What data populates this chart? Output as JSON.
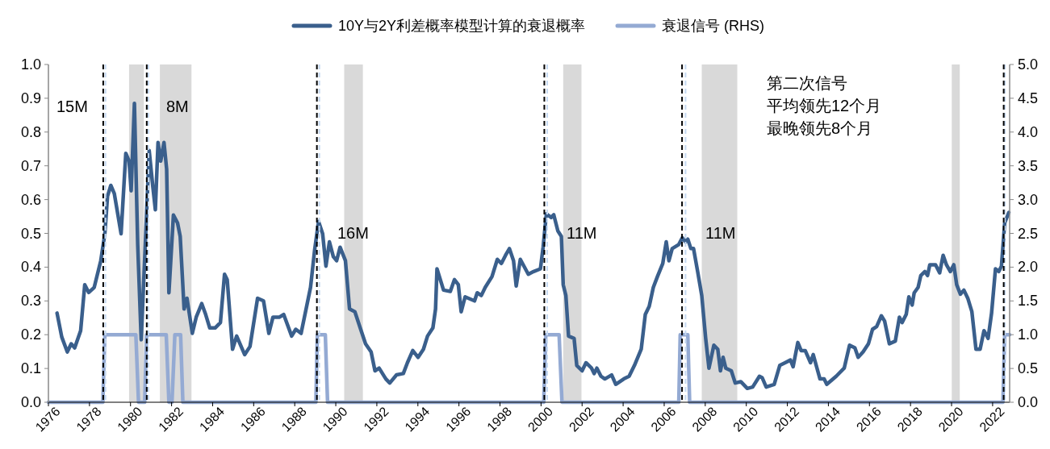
{
  "chart_data": {
    "type": "line",
    "legend": "top",
    "xlim": [
      1976,
      2022.83
    ],
    "xticks": [
      1976,
      1978,
      1980,
      1982,
      1984,
      1986,
      1988,
      1990,
      1992,
      1994,
      1996,
      1998,
      2000,
      2002,
      2004,
      2006,
      2008,
      2010,
      2012,
      2014,
      2016,
      2018,
      2020,
      2022
    ],
    "ylim": [
      0,
      1
    ],
    "yticks": [
      {
        "value": 0,
        "label": "0.0"
      },
      {
        "value": 0.1,
        "label": "0.1"
      },
      {
        "value": 0.2,
        "label": "0.2"
      },
      {
        "value": 0.3,
        "label": "0.3"
      },
      {
        "value": 0.4,
        "label": "0.4"
      },
      {
        "value": 0.5,
        "label": "0.5"
      },
      {
        "value": 0.6,
        "label": "0.6"
      },
      {
        "value": 0.7,
        "label": "0.7"
      },
      {
        "value": 0.8,
        "label": "0.8"
      },
      {
        "value": 0.9,
        "label": "0.9"
      },
      {
        "value": 1,
        "label": "1.0"
      }
    ],
    "y2lim": [
      0,
      5
    ],
    "y2ticks": [
      {
        "value": 0,
        "label": "0.0"
      },
      {
        "value": 0.5,
        "label": "0.5"
      },
      {
        "value": 1,
        "label": "1.0"
      },
      {
        "value": 1.5,
        "label": "1.5"
      },
      {
        "value": 2,
        "label": "2.0"
      },
      {
        "value": 2.5,
        "label": "2.5"
      },
      {
        "value": 3,
        "label": "3.0"
      },
      {
        "value": 3.5,
        "label": "3.5"
      },
      {
        "value": 4,
        "label": "4.0"
      },
      {
        "value": 4.5,
        "label": "4.5"
      },
      {
        "value": 5,
        "label": "5.0"
      }
    ],
    "series": [
      {
        "name": "10Y与2Y利差概率模型计算的衰退概率",
        "color": "#3a5f8c",
        "type": "line",
        "axis": "y",
        "x": [
          1976.42,
          1976.65,
          1976.92,
          1977.11,
          1977.28,
          1977.57,
          1977.77,
          1977.96,
          1978.23,
          1978.55,
          1978.75,
          1978.88,
          1979.04,
          1979.21,
          1979.54,
          1979.77,
          1979.93,
          1980.03,
          1980.19,
          1980.35,
          1980.52,
          1980.72,
          1980.91,
          1981.08,
          1981.21,
          1981.34,
          1981.47,
          1981.63,
          1981.76,
          1981.87,
          1982.09,
          1982.29,
          1982.42,
          1982.61,
          1982.75,
          1983.01,
          1983.2,
          1983.47,
          1983.66,
          1983.86,
          1984.12,
          1984.38,
          1984.58,
          1984.71,
          1984.97,
          1985.17,
          1985.56,
          1985.82,
          1986.19,
          1986.48,
          1986.74,
          1986.94,
          1987.26,
          1987.46,
          1987.85,
          1988.05,
          1988.31,
          1988.77,
          1988.97,
          1989.16,
          1989.36,
          1989.52,
          1989.69,
          1989.88,
          1990.04,
          1990.21,
          1990.47,
          1990.67,
          1990.93,
          1991.19,
          1991.45,
          1991.72,
          1991.91,
          1992.11,
          1992.44,
          1992.63,
          1992.96,
          1993.29,
          1993.49,
          1993.75,
          1994.01,
          1994.27,
          1994.47,
          1994.73,
          1994.86,
          1994.93,
          1995.25,
          1995.58,
          1995.78,
          1995.97,
          1996.11,
          1996.3,
          1996.76,
          1996.89,
          1997.09,
          1997.28,
          1997.61,
          1997.87,
          1998.07,
          1998.27,
          1998.46,
          1998.66,
          1998.79,
          1998.99,
          1999.38,
          1999.64,
          1999.97,
          2000.1,
          2000.26,
          2000.49,
          2000.62,
          2000.82,
          2000.99,
          2001.08,
          2001.21,
          2001.34,
          2001.61,
          2001.74,
          2002.0,
          2002.19,
          2002.46,
          2002.59,
          2002.72,
          2002.92,
          2003.11,
          2003.44,
          2003.64,
          2004.03,
          2004.29,
          2004.55,
          2004.88,
          2005.08,
          2005.27,
          2005.47,
          2005.67,
          2005.93,
          2006.1,
          2006.23,
          2006.39,
          2006.71,
          2006.88,
          2007.04,
          2007.15,
          2007.3,
          2007.43,
          2007.63,
          2007.83,
          2008.02,
          2008.18,
          2008.42,
          2008.61,
          2008.74,
          2008.87,
          2009.0,
          2009.27,
          2009.46,
          2009.73,
          2010.05,
          2010.31,
          2010.64,
          2010.77,
          2010.97,
          2011.36,
          2011.63,
          2011.89,
          2012.15,
          2012.28,
          2012.51,
          2012.67,
          2012.87,
          2013.13,
          2013.26,
          2013.59,
          2013.79,
          2013.92,
          2014.38,
          2014.77,
          2015.03,
          2015.29,
          2015.45,
          2015.69,
          2015.95,
          2016.15,
          2016.35,
          2016.58,
          2016.74,
          2016.97,
          2017.26,
          2017.46,
          2017.59,
          2017.79,
          2017.92,
          2018.08,
          2018.18,
          2018.37,
          2018.5,
          2018.7,
          2018.83,
          2018.94,
          2019.22,
          2019.42,
          2019.59,
          2019.75,
          2019.94,
          2020.11,
          2020.25,
          2020.43,
          2020.6,
          2020.79,
          2020.99,
          2021.19,
          2021.39,
          2021.58,
          2021.78,
          2021.95,
          2022.14,
          2022.3,
          2022.43,
          2022.59,
          2022.79
        ],
        "values": [
          0.264,
          0.193,
          0.149,
          0.173,
          0.161,
          0.212,
          0.348,
          0.325,
          0.34,
          0.419,
          0.499,
          0.61,
          0.642,
          0.618,
          0.499,
          0.737,
          0.714,
          0.626,
          0.885,
          0.467,
          0.185,
          0.467,
          0.745,
          0.642,
          0.57,
          0.769,
          0.714,
          0.769,
          0.69,
          0.324,
          0.554,
          0.531,
          0.491,
          0.276,
          0.308,
          0.204,
          0.252,
          0.292,
          0.26,
          0.22,
          0.22,
          0.236,
          0.379,
          0.363,
          0.157,
          0.196,
          0.141,
          0.165,
          0.308,
          0.3,
          0.204,
          0.252,
          0.252,
          0.26,
          0.196,
          0.216,
          0.204,
          0.34,
          0.451,
          0.535,
          0.499,
          0.403,
          0.475,
          0.431,
          0.419,
          0.459,
          0.419,
          0.276,
          0.268,
          0.22,
          0.173,
          0.149,
          0.093,
          0.101,
          0.069,
          0.057,
          0.081,
          0.085,
          0.117,
          0.153,
          0.133,
          0.157,
          0.196,
          0.22,
          0.276,
          0.395,
          0.332,
          0.328,
          0.363,
          0.348,
          0.268,
          0.312,
          0.3,
          0.324,
          0.316,
          0.34,
          0.372,
          0.423,
          0.411,
          0.435,
          0.455,
          0.419,
          0.344,
          0.423,
          0.379,
          0.387,
          0.395,
          0.459,
          0.558,
          0.547,
          0.555,
          0.507,
          0.491,
          0.348,
          0.316,
          0.196,
          0.189,
          0.109,
          0.093,
          0.117,
          0.101,
          0.085,
          0.101,
          0.077,
          0.069,
          0.081,
          0.053,
          0.069,
          0.077,
          0.109,
          0.157,
          0.26,
          0.284,
          0.34,
          0.372,
          0.411,
          0.475,
          0.419,
          0.455,
          0.467,
          0.487,
          0.475,
          0.483,
          0.455,
          0.455,
          0.387,
          0.316,
          0.189,
          0.101,
          0.169,
          0.157,
          0.093,
          0.133,
          0.101,
          0.093,
          0.057,
          0.061,
          0.041,
          0.045,
          0.077,
          0.073,
          0.045,
          0.053,
          0.109,
          0.117,
          0.125,
          0.105,
          0.177,
          0.153,
          0.153,
          0.117,
          0.141,
          0.069,
          0.069,
          0.053,
          0.077,
          0.101,
          0.169,
          0.161,
          0.133,
          0.149,
          0.173,
          0.216,
          0.224,
          0.256,
          0.24,
          0.173,
          0.181,
          0.252,
          0.236,
          0.26,
          0.312,
          0.288,
          0.324,
          0.34,
          0.375,
          0.387,
          0.375,
          0.407,
          0.407,
          0.383,
          0.435,
          0.407,
          0.387,
          0.407,
          0.348,
          0.32,
          0.332,
          0.308,
          0.268,
          0.157,
          0.157,
          0.212,
          0.189,
          0.264,
          0.395,
          0.387,
          0.403,
          0.531,
          0.562
        ]
      },
      {
        "name": "衰退信号 (RHS)",
        "color": "#94aad3",
        "type": "line",
        "axis": "y2",
        "x": [
          1976,
          1978.65,
          1978.75,
          1980.26,
          1980.39,
          1980.69,
          1980.78,
          1981.74,
          1981.87,
          1982.02,
          1982.16,
          1982.44,
          1982.55,
          1989.03,
          1989.1,
          1989.49,
          1989.6,
          2000.13,
          2000.23,
          2000.88,
          2001.02,
          2006.71,
          2006.78,
          2007.15,
          2007.24,
          2022.5,
          2022.59,
          2022.83
        ],
        "values": [
          0,
          0,
          1,
          1,
          0,
          0,
          1,
          1,
          0,
          0,
          1,
          1,
          0,
          0,
          1,
          1,
          0,
          0,
          1,
          1,
          0,
          0,
          1,
          1,
          0,
          0,
          1,
          1
        ]
      }
    ],
    "bands": [
      {
        "axis": "x",
        "from": 1979.93,
        "to": 1980.65,
        "color": "#d9d9d9"
      },
      {
        "axis": "x",
        "from": 1981.43,
        "to": 1982.97,
        "color": "#d9d9d9"
      },
      {
        "axis": "x",
        "from": 1990.41,
        "to": 1991.32,
        "color": "#d9d9d9"
      },
      {
        "axis": "x",
        "from": 2001.08,
        "to": 2001.97,
        "color": "#d9d9d9"
      },
      {
        "axis": "x",
        "from": 2007.83,
        "to": 2009.56,
        "color": "#d9d9d9"
      },
      {
        "axis": "x",
        "from": 2020.01,
        "to": 2020.4,
        "color": "#d9d9d9"
      }
    ],
    "ref_lines": [
      {
        "axis": "x",
        "value": 1978.78,
        "color": "#c5d9f1",
        "line_style": "dashed"
      },
      {
        "axis": "x",
        "value": 1980.87,
        "color": "#c5d9f1",
        "line_style": "dashed"
      },
      {
        "axis": "x",
        "value": 1989.2,
        "color": "#c5d9f1",
        "line_style": "dashed"
      },
      {
        "axis": "x",
        "value": 2000.3,
        "color": "#c5d9f1",
        "line_style": "dashed"
      },
      {
        "axis": "x",
        "value": 2007.04,
        "color": "#c5d9f1",
        "line_style": "dashed"
      },
      {
        "axis": "x",
        "value": 2022.6,
        "color": "#c5d9f1",
        "line_style": "dashed"
      },
      {
        "axis": "x",
        "value": 1978.67,
        "color": "#000000",
        "line_style": "dashed"
      },
      {
        "axis": "x",
        "value": 1980.79,
        "color": "#000000",
        "line_style": "dashed"
      },
      {
        "axis": "x",
        "value": 1989.08,
        "color": "#000000",
        "line_style": "dashed"
      },
      {
        "axis": "x",
        "value": 2000.16,
        "color": "#000000",
        "line_style": "dashed"
      },
      {
        "axis": "x",
        "value": 2006.87,
        "color": "#000000",
        "line_style": "dashed"
      },
      {
        "axis": "x",
        "value": 2022.54,
        "color": "#000000",
        "line_style": "dashed"
      }
    ],
    "annotations": [
      "15M",
      "8M",
      "16M",
      "11M",
      "11M",
      "第二次信号",
      "平均领先12个月",
      "最晚领先8个月"
    ]
  }
}
